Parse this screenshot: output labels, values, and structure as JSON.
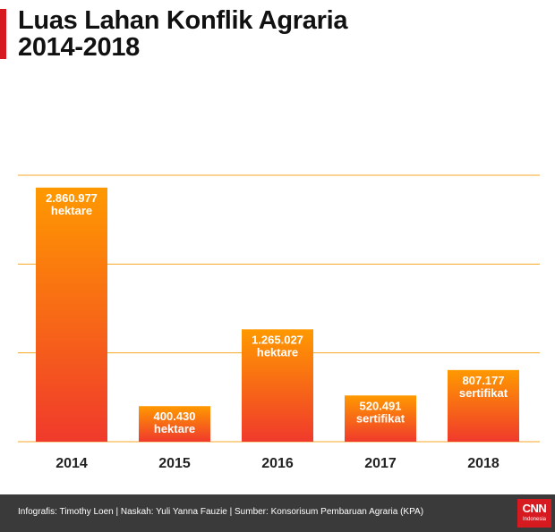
{
  "header": {
    "title_line1": "Luas Lahan Konflik Agraria",
    "title_line2": "2014-2018"
  },
  "footer": {
    "credit": "Infografis: Timothy Loen | Naskah: Yuli Yanna Fauzie | Sumber: Konsorisum Pembaruan Agraria (KPA)",
    "logo_main": "CNN",
    "logo_sub": "Indonesia"
  },
  "colors": {
    "accent": "#d71920",
    "bar_top": "#ff9900",
    "bar_bottom": "#f03a2c",
    "gridline": "#f5a623",
    "footer_bg": "#3a3a3a"
  },
  "chart_data": {
    "type": "bar",
    "title": "Luas Lahan Konflik Agraria 2014-2018",
    "categories": [
      "2014",
      "2015",
      "2016",
      "2017",
      "2018"
    ],
    "values": [
      2860977,
      400430,
      1265027,
      520491,
      807177
    ],
    "value_labels": [
      "2.860.977",
      "400.430",
      "1.265.027",
      "520.491",
      "807.177"
    ],
    "unit_labels": [
      "hektare",
      "hektare",
      "hektare",
      "sertifikat",
      "sertifikat"
    ],
    "ylim": [
      0,
      3000000
    ],
    "gridlines": [
      0,
      1000000,
      2000000,
      3000000
    ],
    "grid": true,
    "xlabel": "",
    "ylabel": ""
  }
}
